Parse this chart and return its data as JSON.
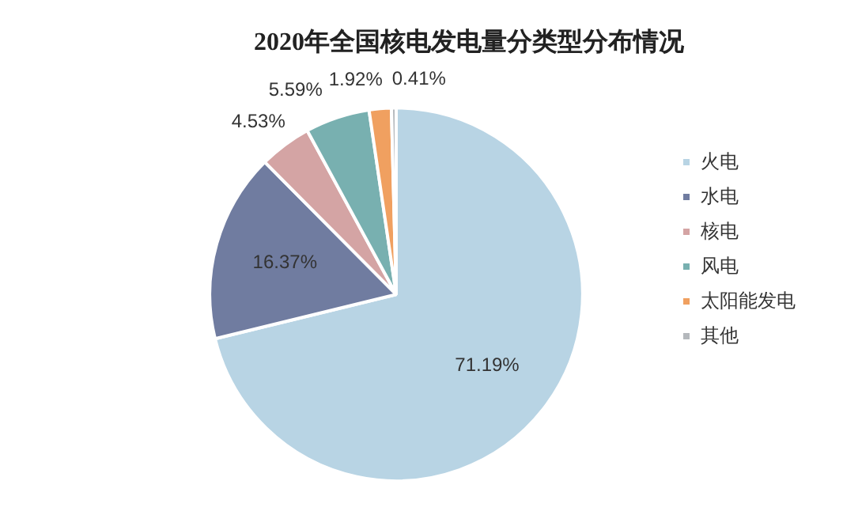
{
  "chart_data": {
    "type": "pie",
    "title": "2020年全国核电发电量分类型分布情况",
    "categories": [
      "火电",
      "水电",
      "核电",
      "风电",
      "太阳能发电",
      "其他"
    ],
    "values": [
      71.19,
      16.37,
      4.53,
      5.59,
      1.92,
      0.41
    ],
    "value_labels": [
      "71.19%",
      "16.37%",
      "4.53%",
      "5.59%",
      "1.92%",
      "0.41%"
    ],
    "colors": [
      "#b8d4e4",
      "#707ca0",
      "#d4a4a4",
      "#78b0b0",
      "#f0a060",
      "#b4b8bc"
    ],
    "legend": "right"
  }
}
